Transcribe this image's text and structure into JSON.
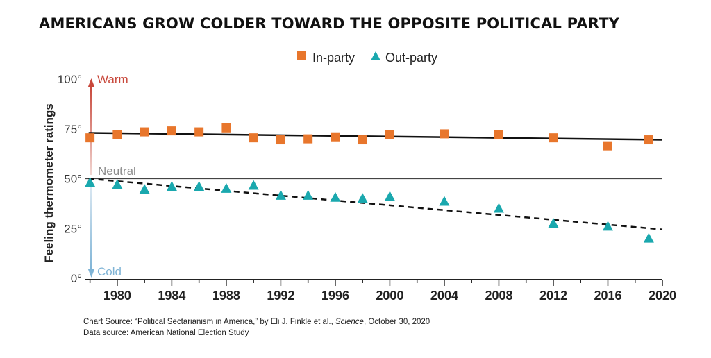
{
  "chart_data": {
    "type": "scatter",
    "title": "AMERICANS GROW COLDER TOWARD THE OPPOSITE POLITICAL PARTY",
    "ylabel": "Feeling thermometer ratings",
    "xlabel": "",
    "xlim": [
      1977,
      2020
    ],
    "ylim": [
      0,
      100
    ],
    "x_ticks": [
      1980,
      1984,
      1988,
      1992,
      1996,
      2000,
      2004,
      2008,
      2012,
      2016,
      2020
    ],
    "x_tick_labels": [
      "1980",
      "1984",
      "1988",
      "1992",
      "1996",
      "2000",
      "2004",
      "2008",
      "2012",
      "2016",
      "2020"
    ],
    "y_ticks": [
      0,
      25,
      50,
      75,
      100
    ],
    "y_tick_labels": [
      "0°",
      "25°",
      "50°",
      "75°",
      "100°"
    ],
    "grid": false,
    "legend_position": "top-center",
    "annotations": {
      "warm": "Warm",
      "neutral": "Neutral",
      "cold": "Cold"
    },
    "series": [
      {
        "name": "In-party",
        "marker": "square",
        "color": "#e8762c",
        "x": [
          1978,
          1980,
          1982,
          1984,
          1986,
          1988,
          1990,
          1992,
          1994,
          1996,
          1998,
          2000,
          2004,
          2008,
          2012,
          2016,
          2019
        ],
        "y": [
          70.5,
          72,
          73.5,
          74,
          73.5,
          75.5,
          70.5,
          69.5,
          70,
          71,
          69.5,
          72,
          72.5,
          72,
          70.5,
          66.5,
          69.5
        ],
        "trend": {
          "style": "solid",
          "x": [
            1977.9,
            2020
          ],
          "y": [
            73,
            69.5
          ]
        }
      },
      {
        "name": "Out-party",
        "marker": "triangle",
        "color": "#1aa8ae",
        "x": [
          1978,
          1980,
          1982,
          1984,
          1986,
          1988,
          1990,
          1992,
          1994,
          1996,
          1998,
          2000,
          2004,
          2008,
          2012,
          2016,
          2019
        ],
        "y": [
          48,
          47,
          44.5,
          46,
          46,
          45,
          46.5,
          41.5,
          41.5,
          40.5,
          40,
          41,
          38.5,
          35,
          27.5,
          26,
          20
        ],
        "trend": {
          "style": "dashed",
          "x": [
            1977.9,
            2020
          ],
          "y": [
            50,
            24.5
          ]
        }
      }
    ],
    "neutral_line_value": 50
  },
  "footer": {
    "source_prefix": "Chart Source: “Political Sectarianism in America,” by Eli J. Finkle et al., ",
    "source_journal": "Science",
    "source_suffix": ", October 30, 2020",
    "data_source": "Data source: American National Election Study"
  },
  "colors": {
    "warm": "#c8473a",
    "cold": "#7fb4d6",
    "neutral": "#8c8c8c",
    "axis": "#222222"
  }
}
